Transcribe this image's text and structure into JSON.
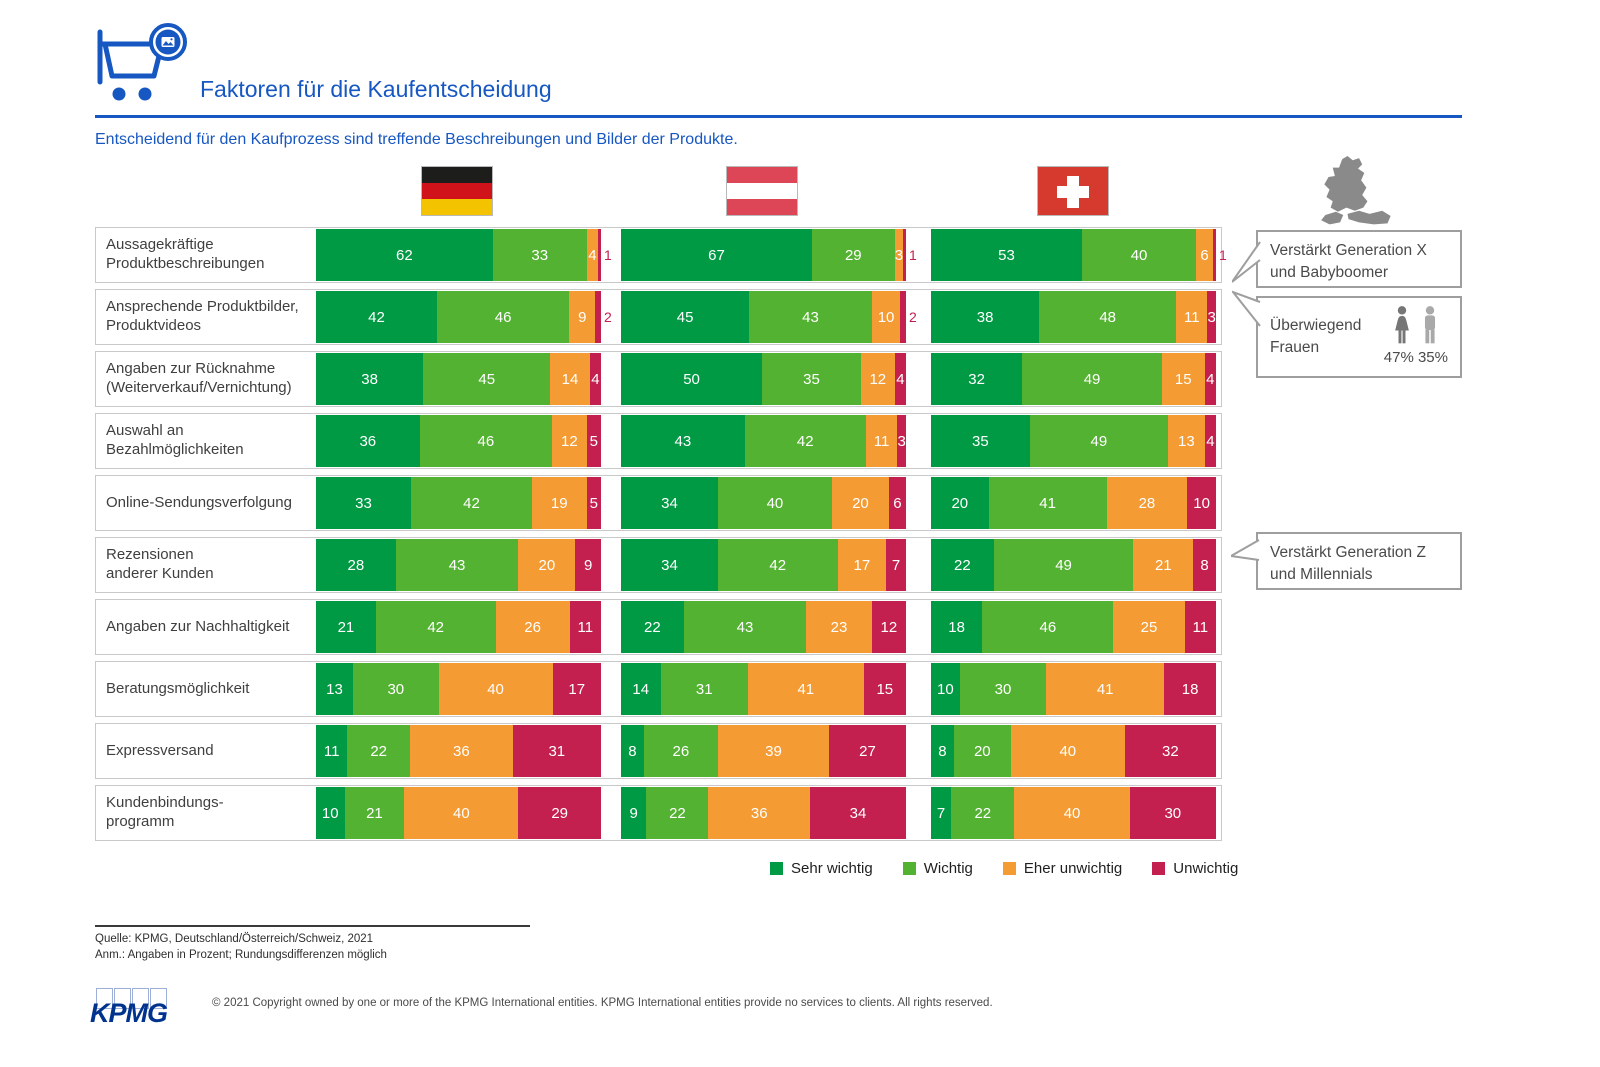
{
  "header": {
    "title": "Faktoren für die Kaufentscheidung",
    "subtitle": "Entscheidend für den Kaufprozess sind treffende Beschreibungen und Bilder der Produkte."
  },
  "chart_data": {
    "type": "bar",
    "orientation": "horizontal_stacked",
    "unit": "percent",
    "legend": [
      {
        "label": "Sehr wichtig",
        "color": "#009A44"
      },
      {
        "label": "Wichtig",
        "color": "#54B232"
      },
      {
        "label": "Eher unwichtig",
        "color": "#F49B33"
      },
      {
        "label": "Unwichtig",
        "color": "#C32050"
      }
    ],
    "categories": [
      "Aussagekräftige\nProduktbeschreibungen",
      "Ansprechende Produktbilder,\nProduktvideos",
      "Angaben zur Rücknahme\n(Weiterverkauf/Vernichtung)",
      "Auswahl an\nBezahlmöglichkeiten",
      "Online-Sendungsverfolgung",
      "Rezensionen\nanderer Kunden",
      "Angaben zur Nachhaltigkeit",
      "Beratungsmöglichkeit",
      "Expressversand",
      "Kundenbindungs-\nprogramm"
    ],
    "series": [
      {
        "name": "Deutschland",
        "flag": "germany-flag",
        "values": [
          [
            62,
            33,
            4,
            1
          ],
          [
            42,
            46,
            9,
            2
          ],
          [
            38,
            45,
            14,
            4
          ],
          [
            36,
            46,
            12,
            5
          ],
          [
            33,
            42,
            19,
            5
          ],
          [
            28,
            43,
            20,
            9
          ],
          [
            21,
            42,
            26,
            11
          ],
          [
            13,
            30,
            40,
            17
          ],
          [
            11,
            22,
            36,
            31
          ],
          [
            10,
            21,
            40,
            29
          ]
        ]
      },
      {
        "name": "Österreich",
        "flag": "austria-flag",
        "values": [
          [
            67,
            29,
            3,
            1
          ],
          [
            45,
            43,
            10,
            2
          ],
          [
            50,
            35,
            12,
            4
          ],
          [
            43,
            42,
            11,
            3
          ],
          [
            34,
            40,
            20,
            6
          ],
          [
            34,
            42,
            17,
            7
          ],
          [
            22,
            43,
            23,
            12
          ],
          [
            14,
            31,
            41,
            15
          ],
          [
            8,
            26,
            39,
            27
          ],
          [
            9,
            22,
            36,
            34
          ]
        ]
      },
      {
        "name": "Schweiz",
        "flag": "switzerland-flag",
        "values": [
          [
            53,
            40,
            6,
            1
          ],
          [
            38,
            48,
            11,
            3
          ],
          [
            32,
            49,
            15,
            4
          ],
          [
            35,
            49,
            13,
            4
          ],
          [
            20,
            41,
            28,
            10
          ],
          [
            22,
            49,
            21,
            8
          ],
          [
            18,
            46,
            25,
            11
          ],
          [
            10,
            30,
            41,
            18
          ],
          [
            8,
            20,
            40,
            32
          ],
          [
            7,
            22,
            40,
            30
          ]
        ]
      }
    ]
  },
  "callouts": [
    {
      "text": "Verstärkt Generation X\nund Babyboomer"
    },
    {
      "text": "Überwiegend\nFrauen",
      "female_pct": "47%",
      "male_pct": "35%"
    },
    {
      "text": "Verstärkt Generation Z\nund Millennials"
    }
  ],
  "footer": {
    "source": "Quelle: KPMG, Deutschland/Österreich/Schweiz, 2021",
    "note": "Anm.: Angaben in Prozent; Rundungsdifferenzen möglich",
    "logo": "KPMG",
    "copyright": "© 2021 Copyright owned by one or more of the KPMG International entities. KPMG International entities provide no services to clients. All rights reserved."
  }
}
